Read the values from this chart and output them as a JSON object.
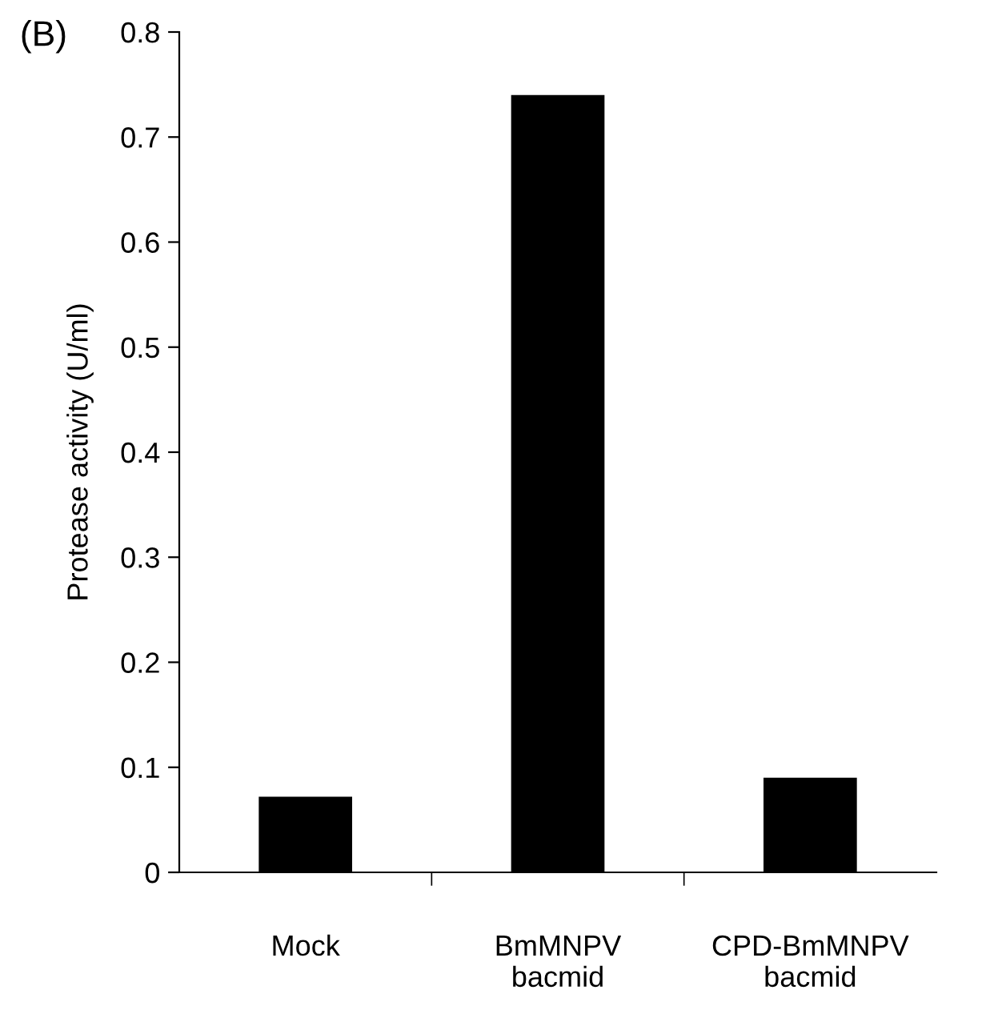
{
  "chart_data": {
    "type": "bar",
    "ylabel": "Protease activity (U/ml)",
    "annotations": [
      "(B)"
    ],
    "categories": [
      "Mock",
      "BmMNPV\nbacmid",
      "CPD-BmMNPV\nbacmid"
    ],
    "values": [
      0.072,
      0.74,
      0.09
    ],
    "color": "#000000",
    "ylim": [
      0,
      0.8
    ],
    "yticks": [
      0,
      0.1,
      0.2,
      0.3,
      0.4,
      0.5,
      0.6,
      0.7,
      0.8
    ],
    "grid": false,
    "legend": false
  }
}
